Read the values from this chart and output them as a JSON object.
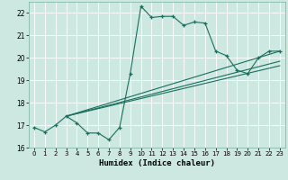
{
  "title": "",
  "xlabel": "Humidex (Indice chaleur)",
  "bg_color": "#cce8e0",
  "line_color": "#1a6e5e",
  "x_min": -0.5,
  "x_max": 23.5,
  "y_min": 16,
  "y_max": 22.5,
  "yticks": [
    16,
    17,
    18,
    19,
    20,
    21,
    22
  ],
  "xticks": [
    0,
    1,
    2,
    3,
    4,
    5,
    6,
    7,
    8,
    9,
    10,
    11,
    12,
    13,
    14,
    15,
    16,
    17,
    18,
    19,
    20,
    21,
    22,
    23
  ],
  "curve1_x": [
    0,
    1,
    2,
    3,
    4,
    5,
    6,
    7,
    8,
    9,
    10,
    11,
    12,
    13,
    14,
    15,
    16,
    17,
    18,
    19,
    20,
    21,
    22,
    23
  ],
  "curve1_y": [
    16.9,
    16.7,
    17.0,
    17.4,
    17.1,
    16.65,
    16.65,
    16.35,
    16.9,
    19.3,
    22.3,
    21.8,
    21.85,
    21.85,
    21.45,
    21.6,
    21.55,
    20.3,
    20.1,
    19.45,
    19.3,
    20.0,
    20.3,
    20.3
  ],
  "line2_x": [
    3,
    23
  ],
  "line2_y": [
    17.4,
    20.3
  ],
  "line3_x": [
    3,
    23
  ],
  "line3_y": [
    17.4,
    19.85
  ],
  "line4_x": [
    3,
    23
  ],
  "line4_y": [
    17.4,
    19.65
  ]
}
